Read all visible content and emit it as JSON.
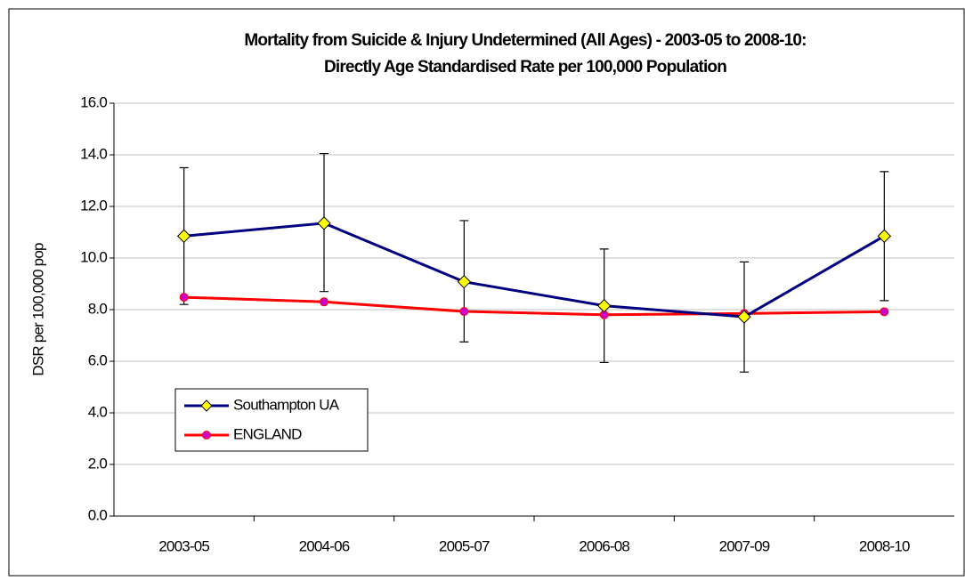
{
  "chart_data": {
    "type": "line",
    "title": [
      "Mortality from Suicide & Injury Undetermined (All Ages) - 2003-05 to 2008-10:",
      "Directly Age Standardised Rate per 100,000 Population"
    ],
    "y_label": "DSR per 100,000 pop",
    "categories": [
      "2003-05",
      "2004-06",
      "2005-07",
      "2006-08",
      "2007-09",
      "2008-10"
    ],
    "series": [
      {
        "name": "Southampton UA",
        "color": "#000080",
        "marker": "diamond",
        "marker_color": "#ffff00",
        "values": [
          10.85,
          11.35,
          9.08,
          8.15,
          7.72,
          10.85
        ],
        "ci_lower": [
          8.2,
          8.7,
          6.75,
          5.95,
          5.58,
          8.35
        ],
        "ci_upper": [
          13.5,
          14.05,
          11.45,
          10.35,
          9.85,
          13.35
        ]
      },
      {
        "name": "ENGLAND",
        "color": "#ff0000",
        "marker": "circle",
        "marker_color": "#cc00cc",
        "values": [
          8.48,
          8.3,
          7.93,
          7.8,
          7.85,
          7.92
        ]
      }
    ],
    "ylim": [
      0,
      16
    ],
    "yticks": [
      {
        "value": 0,
        "label": "0.0"
      },
      {
        "value": 2,
        "label": "2.0"
      },
      {
        "value": 4,
        "label": "4.0"
      },
      {
        "value": 6,
        "label": "6.0"
      },
      {
        "value": 8,
        "label": "8.0"
      },
      {
        "value": 10,
        "label": "10.0"
      },
      {
        "value": 12,
        "label": "12.0"
      },
      {
        "value": 14,
        "label": "14.0"
      },
      {
        "value": 16,
        "label": "16.0"
      }
    ],
    "grid": true
  }
}
